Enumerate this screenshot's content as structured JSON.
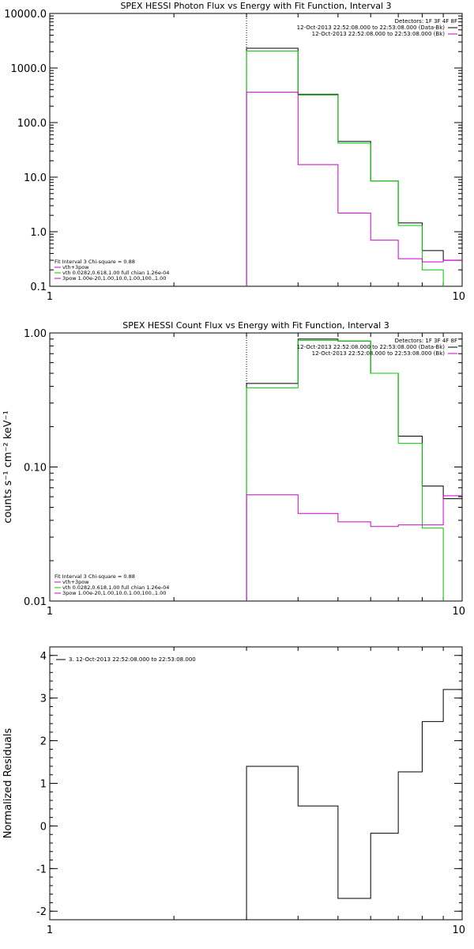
{
  "colors": {
    "background": "#ffffff",
    "axis": "#000000",
    "data": "#000000",
    "vth": "#00cc00",
    "pow": "#cc00cc",
    "text": "#000000"
  },
  "chart_data": [
    {
      "type": "line",
      "step": true,
      "title": "SPEX HESSI Photon Flux vs Energy with Fit Function, Interval 3",
      "xlabel": "",
      "ylabel": "",
      "xscale": "log",
      "yscale": "log",
      "xlim": [
        1,
        10
      ],
      "ylim": [
        0.1,
        10000
      ],
      "xticks": [
        1,
        10
      ],
      "xtick_labels": [
        "1",
        "10"
      ],
      "yticks": [
        0.1,
        1,
        10,
        100,
        1000,
        10000
      ],
      "ytick_labels": [
        "0.1",
        "1.0",
        "10.0",
        "100.0",
        "1000.0",
        "10000.0"
      ],
      "vline": 3.0,
      "legend_top": {
        "placement": "top-right",
        "lines": [
          "Detectors: 1F 3F 4F 8F",
          "12-Oct-2013 22:52:08.000 to 22:53:08.000 (Data-Bk)",
          "12-Oct-2013 22:52:08.000 to 22:53:08.000 (Bk)"
        ]
      },
      "legend_bottom": {
        "placement": "bottom-left",
        "lines": [
          "Fit Interval 3   Chi-square = 0.88",
          "vth+3pow",
          "vth 0.0282,0.618,1.00  full chian 1.26e-04",
          "3pow 1.00e-20,1.00,10.0,1.00,100.,1.00"
        ]
      },
      "series": [
        {
          "name": "Data-Bk",
          "edges": [
            3.0,
            4.0,
            5.0,
            6.0,
            7.0,
            8.0,
            9.0,
            10.0
          ],
          "values": [
            2300,
            330,
            45,
            8.5,
            1.45,
            0.45,
            0.3
          ]
        },
        {
          "name": "vth",
          "edges": [
            3.0,
            4.0,
            5.0,
            6.0,
            7.0,
            8.0,
            9.0,
            10.0
          ],
          "values": [
            2050,
            320,
            42,
            8.5,
            1.3,
            0.2,
            0.07
          ]
        },
        {
          "name": "3pow",
          "edges": [
            3.0,
            4.0,
            5.0,
            6.0,
            7.0,
            8.0,
            9.0,
            10.0
          ],
          "values": [
            360,
            17,
            2.2,
            0.7,
            0.32,
            0.28,
            0.3
          ]
        }
      ]
    },
    {
      "type": "line",
      "step": true,
      "title": "SPEX HESSI Count Flux vs Energy with Fit Function, Interval 3",
      "xlabel": "",
      "ylabel": "counts s⁻¹ cm⁻² keV⁻¹",
      "xscale": "log",
      "yscale": "log",
      "xlim": [
        1,
        10
      ],
      "ylim": [
        0.01,
        1
      ],
      "xticks": [
        1,
        10
      ],
      "xtick_labels": [
        "1",
        "10"
      ],
      "yticks": [
        0.01,
        0.1,
        1
      ],
      "ytick_labels": [
        "0.01",
        "0.10",
        "1.00"
      ],
      "vline": 3.0,
      "legend_top": {
        "placement": "top-right",
        "lines": [
          "Detectors: 1F 3F 4F 8F",
          "12-Oct-2013 22:52:08.000 to 22:53:08.000 (Data-Bk)",
          "12-Oct-2013 22:52:08.000 to 22:53:08.000 (Bk)"
        ]
      },
      "legend_bottom": {
        "placement": "bottom-left",
        "lines": [
          "Fit Interval 3   Chi-square = 0.88",
          "vth+3pow",
          "vth 0.0282,0.618,1.00  full chian 1.26e-04",
          "3pow 1.00e-20,1.00,10.0,1.00,100.,1.00"
        ]
      },
      "series": [
        {
          "name": "Data-Bk",
          "edges": [
            3.0,
            4.0,
            5.0,
            6.0,
            7.0,
            8.0,
            9.0,
            10.0
          ],
          "values": [
            0.42,
            0.9,
            0.87,
            0.5,
            0.17,
            0.072,
            0.058
          ]
        },
        {
          "name": "vth",
          "edges": [
            3.0,
            4.0,
            5.0,
            6.0,
            7.0,
            8.0,
            9.0,
            10.0
          ],
          "values": [
            0.39,
            0.88,
            0.87,
            0.5,
            0.15,
            0.035,
            0.006
          ]
        },
        {
          "name": "3pow",
          "edges": [
            3.0,
            4.0,
            5.0,
            6.0,
            7.0,
            8.0,
            9.0,
            10.0
          ],
          "values": [
            0.062,
            0.045,
            0.039,
            0.036,
            0.037,
            0.037,
            0.061
          ]
        }
      ]
    },
    {
      "type": "line",
      "step": true,
      "title": "",
      "xlabel": "",
      "ylabel": "Normalized Residuals",
      "xscale": "log",
      "yscale": "linear",
      "xlim": [
        1,
        10
      ],
      "ylim": [
        -2.2,
        4.2
      ],
      "xticks": [
        1,
        10
      ],
      "xtick_labels": [
        "1",
        "10"
      ],
      "yticks": [
        -2,
        -1,
        0,
        1,
        2,
        3,
        4
      ],
      "ytick_labels": [
        "-2",
        "-1",
        "0",
        "1",
        "2",
        "3",
        "4"
      ],
      "legend_top": {
        "placement": "top-left",
        "lines": [
          "3. 12-Oct-2013 22:52:08.000 to 22:53:08.000"
        ]
      },
      "series": [
        {
          "name": "Residuals",
          "edges": [
            3.0,
            4.0,
            5.0,
            6.0,
            7.0,
            8.0,
            9.0,
            10.0
          ],
          "values": [
            1.4,
            0.47,
            -1.7,
            -0.17,
            1.27,
            2.45,
            3.2
          ]
        }
      ]
    }
  ]
}
